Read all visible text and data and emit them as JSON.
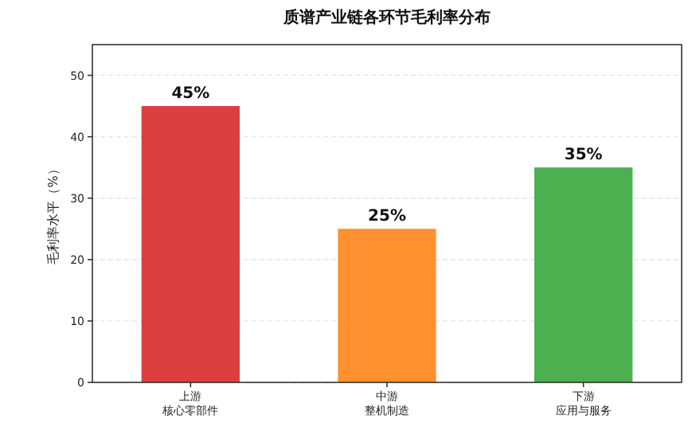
{
  "chart_data": {
    "type": "bar",
    "title": "质谱产业链各环节毛利率分布",
    "ylabel": "毛利率水平（%）",
    "categories": [
      "上游核心零部件",
      "中游整机制造",
      "下游应用与服务"
    ],
    "values": [
      45,
      25,
      35
    ],
    "colors": [
      "#dc3f3f",
      "#ff9130",
      "#4caf50"
    ],
    "value_labels": [
      "45%",
      "25%",
      "35%"
    ],
    "ylim": [
      0,
      55
    ],
    "yticks": [
      0,
      10,
      20,
      30,
      40,
      50
    ],
    "grid": "y"
  }
}
